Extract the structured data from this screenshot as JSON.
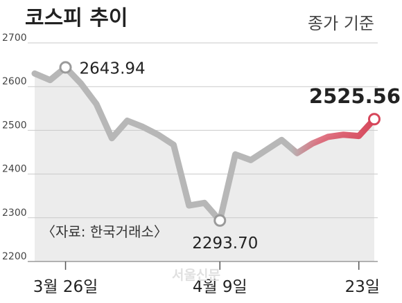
{
  "chart_data": {
    "type": "line",
    "title": "코스피 추이",
    "subtitle": "종가 기준",
    "source": "〈자료: 한국거래소〉",
    "watermark": "서울신문",
    "ylim": [
      2200,
      2700
    ],
    "yticks": [
      2200,
      2300,
      2400,
      2500,
      2600,
      2700
    ],
    "grid": true,
    "x_labels": [
      {
        "index": 2,
        "text": "3월 26일"
      },
      {
        "index": 12,
        "text": "4월 9일"
      },
      {
        "index": 21,
        "text": "23일"
      }
    ],
    "series": [
      {
        "values": [
          2630,
          2615,
          2643.94,
          2607,
          2560,
          2482,
          2522,
          2508,
          2490,
          2467,
          2328,
          2334,
          2293.7,
          2445,
          2432,
          2455,
          2478,
          2448,
          2470,
          2485,
          2490,
          2487,
          2525.56
        ],
        "colors": {
          "base": "#b7b7b7",
          "highlight": "#d6465a"
        }
      }
    ],
    "annotations": [
      {
        "index": 2,
        "text": "2643.94",
        "style": "normal"
      },
      {
        "index": 12,
        "text": "2293.70",
        "style": "normal"
      },
      {
        "index": 22,
        "text": "2525.56",
        "style": "bold"
      }
    ]
  }
}
